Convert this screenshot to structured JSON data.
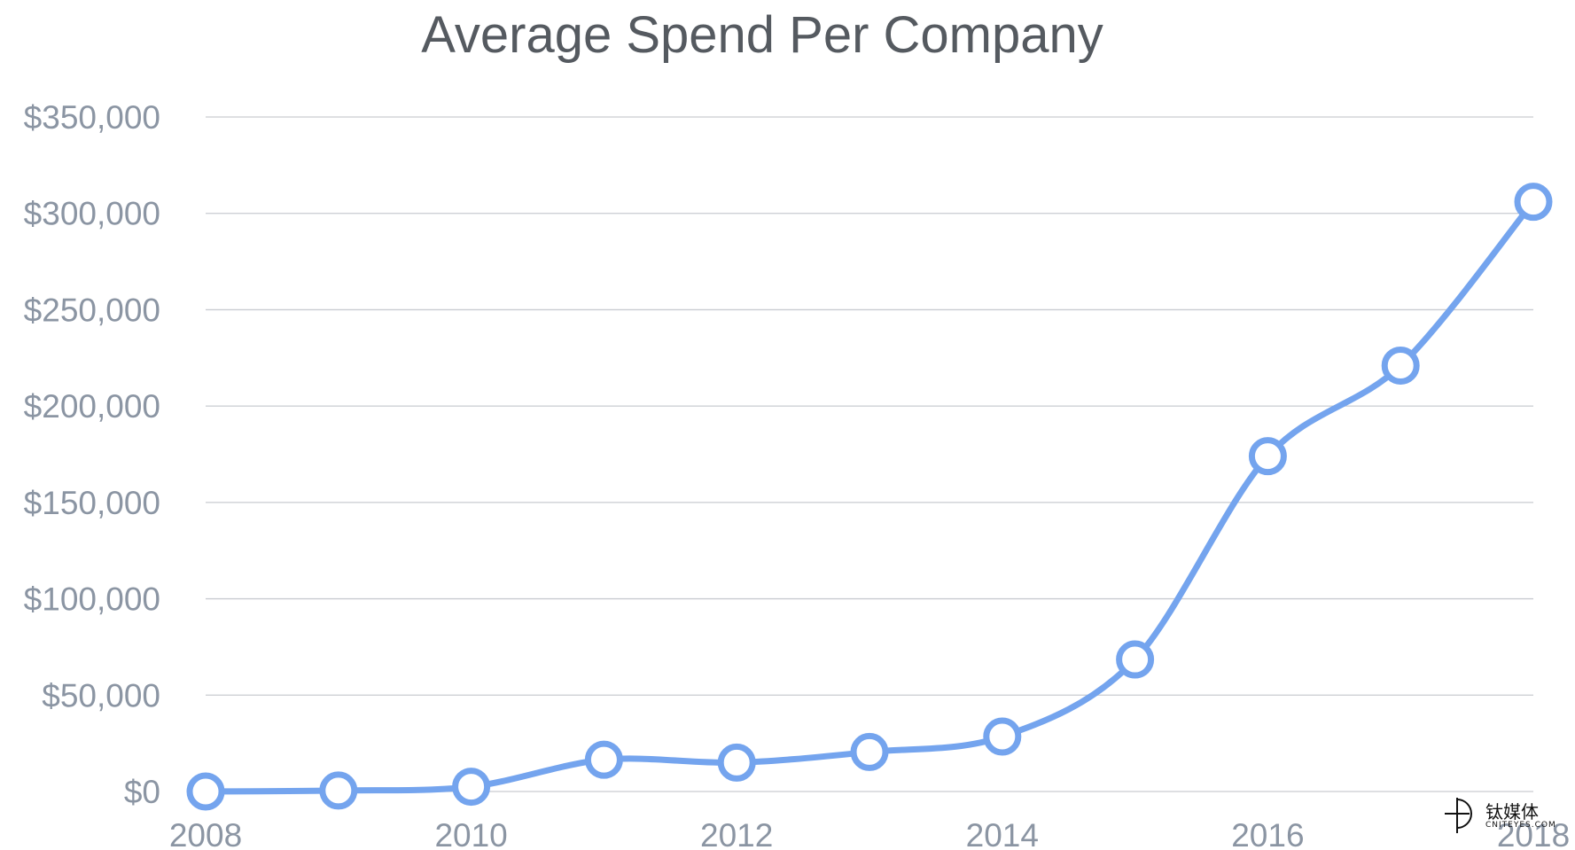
{
  "chart_data": {
    "type": "line",
    "title": "Average Spend Per Company",
    "xlabel": "",
    "ylabel": "",
    "x": [
      2008,
      2009,
      2010,
      2011,
      2012,
      2013,
      2014,
      2015,
      2016,
      2017,
      2018
    ],
    "series": [
      {
        "values": [
          0,
          500,
          2500,
          16500,
          15000,
          20500,
          28500,
          68500,
          174000,
          221000,
          306000
        ]
      }
    ],
    "xlim": [
      2008,
      2018
    ],
    "ylim": [
      0,
      350000
    ],
    "xticks": [
      "2008",
      "2010",
      "2012",
      "2014",
      "2016",
      "2018"
    ],
    "xtick_values": [
      2008,
      2010,
      2012,
      2014,
      2016,
      2018
    ],
    "yticks": [
      "$0",
      "$50,000",
      "$100,000",
      "$150,000",
      "$200,000",
      "$250,000",
      "$300,000",
      "$350,000"
    ],
    "ytick_values": [
      0,
      50000,
      100000,
      150000,
      200000,
      250000,
      300000,
      350000
    ],
    "grid": true,
    "legend": "none",
    "colors": {
      "line": "#74a4ee",
      "marker_fill": "#ffffff",
      "grid": "#c9ccd1",
      "tick_text": "#8b95a3",
      "title": "#555a60"
    }
  },
  "watermark": {
    "cn": "钛媒体",
    "en": "CNITEYES.COM"
  }
}
